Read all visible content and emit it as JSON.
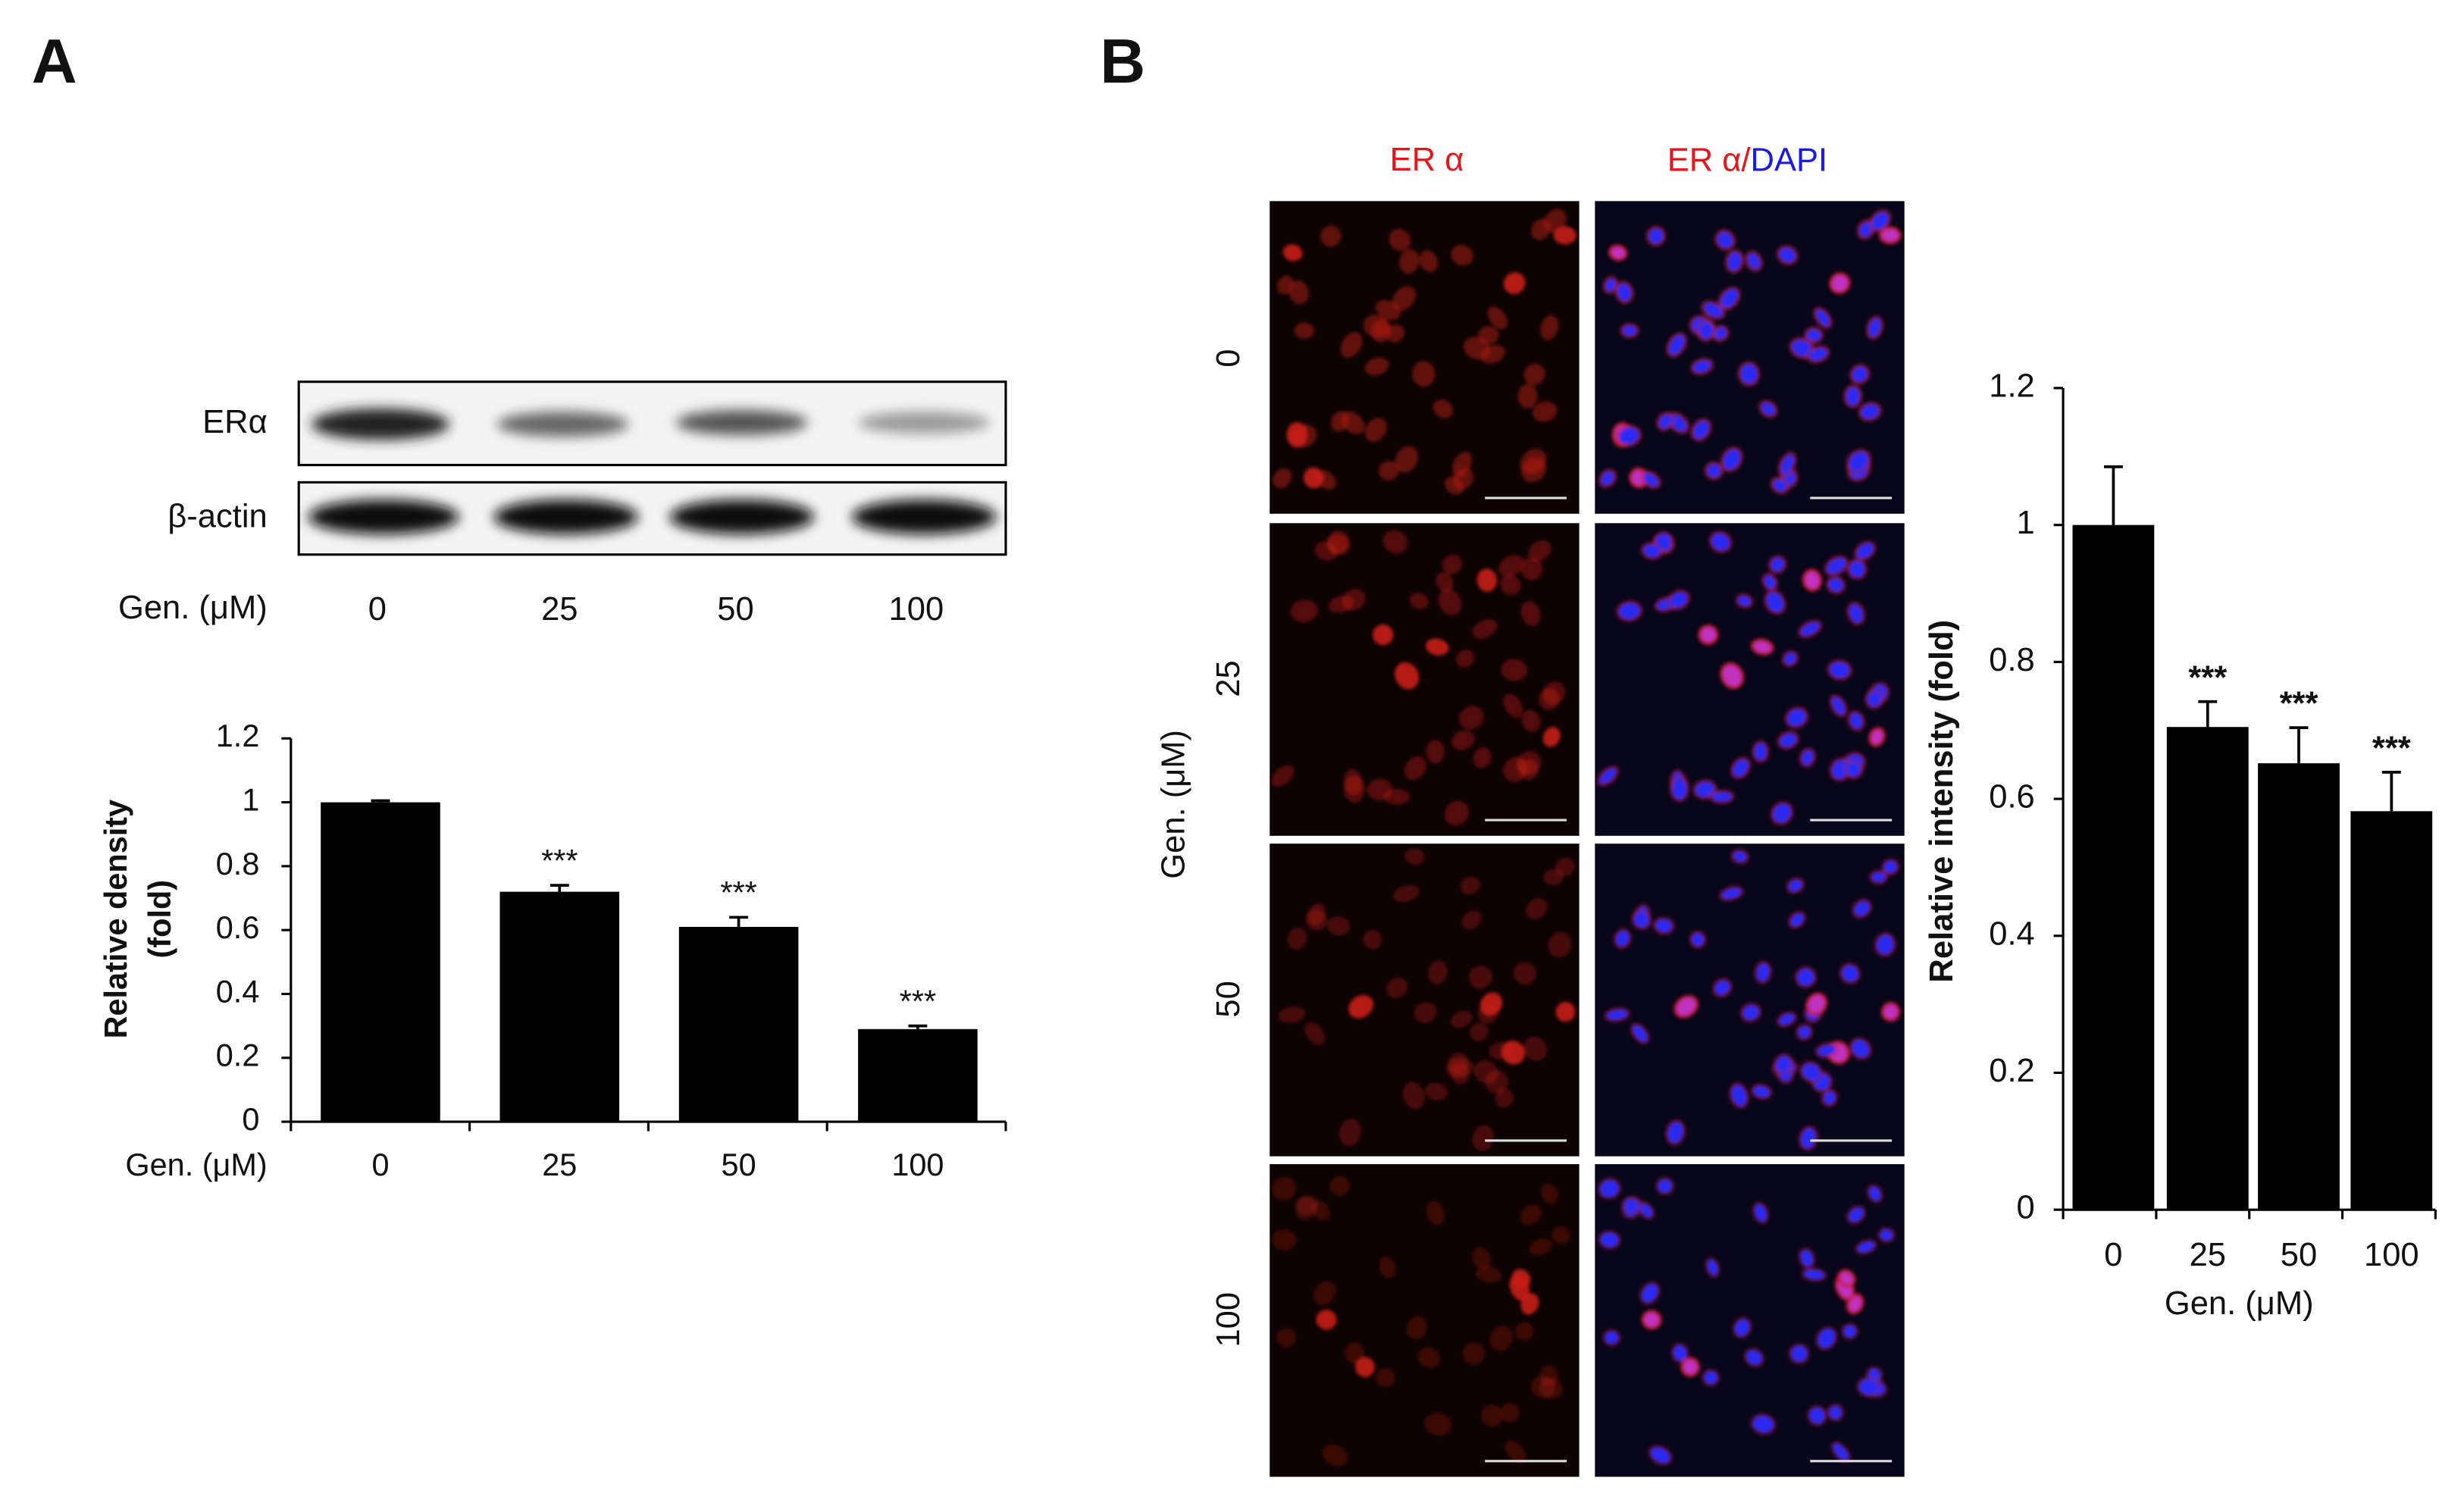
{
  "panel_labels": [
    "A",
    "B"
  ],
  "blot": {
    "rows": [
      "ERα",
      "β-actin"
    ],
    "x_label": "Gen. (μM)",
    "lanes": [
      "0",
      "25",
      "50",
      "100"
    ]
  },
  "microscopy": {
    "red_label": "ER α",
    "merge_label": [
      "ER α/",
      "DAPI"
    ],
    "y_label": "Gen. (μM)",
    "rows": [
      "0",
      "25",
      "50",
      "100"
    ]
  },
  "chart_data": [
    {
      "type": "bar",
      "categories": [
        "0",
        "25",
        "50",
        "100"
      ],
      "values": [
        1.0,
        0.72,
        0.61,
        0.29
      ],
      "errors": [
        0.005,
        0.02,
        0.03,
        0.01
      ],
      "annotations": [
        null,
        "***",
        "***",
        "***"
      ],
      "color": "#000000",
      "ylim": [
        0,
        1.2
      ],
      "yticks": [
        0,
        0.2,
        0.4,
        0.6,
        0.8,
        1,
        1.2
      ],
      "xlabel": "Gen. (μM)",
      "ylabel": [
        "Relative density",
        "(fold)"
      ]
    },
    {
      "type": "bar",
      "categories": [
        "0",
        "25",
        "50",
        "100"
      ],
      "values": [
        1.0,
        0.705,
        0.652,
        0.582
      ],
      "errors": [
        0.085,
        0.037,
        0.052,
        0.057
      ],
      "annotations": [
        null,
        "***",
        "***",
        "***"
      ],
      "color": "#000000",
      "ylim": [
        0,
        1.2
      ],
      "yticks": [
        0,
        0.2,
        0.4,
        0.6,
        0.8,
        1,
        1.2
      ],
      "xlabel": "Gen. (μM)",
      "ylabel": [
        "Relative intensity (fold)"
      ]
    }
  ]
}
